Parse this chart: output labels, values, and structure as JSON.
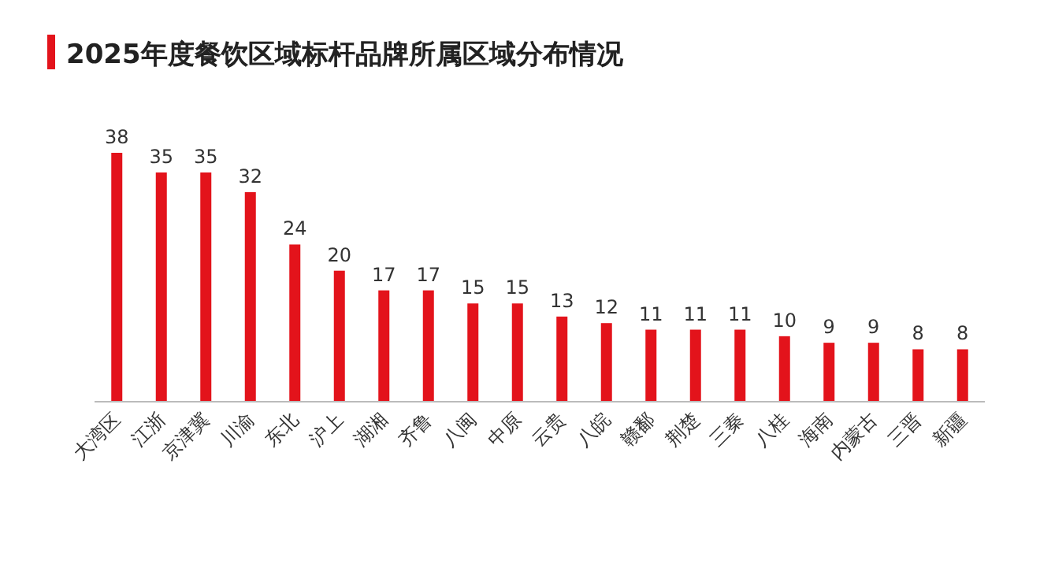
{
  "chart_data": {
    "type": "bar",
    "title": "2025年度餐饮区域标杆品牌所属区域分布情况",
    "categories": [
      "大湾区",
      "江浙",
      "京津冀",
      "川渝",
      "东北",
      "沪上",
      "湖湘",
      "齐鲁",
      "八闽",
      "中原",
      "云贵",
      "八皖",
      "赣鄱",
      "荆楚",
      "三秦",
      "八桂",
      "海南",
      "内蒙古",
      "三晋",
      "新疆"
    ],
    "values": [
      38,
      35,
      35,
      32,
      24,
      20,
      17,
      17,
      15,
      15,
      13,
      12,
      11,
      11,
      11,
      10,
      9,
      9,
      8,
      8
    ],
    "color": "#e3131b",
    "data_labels": true
  }
}
